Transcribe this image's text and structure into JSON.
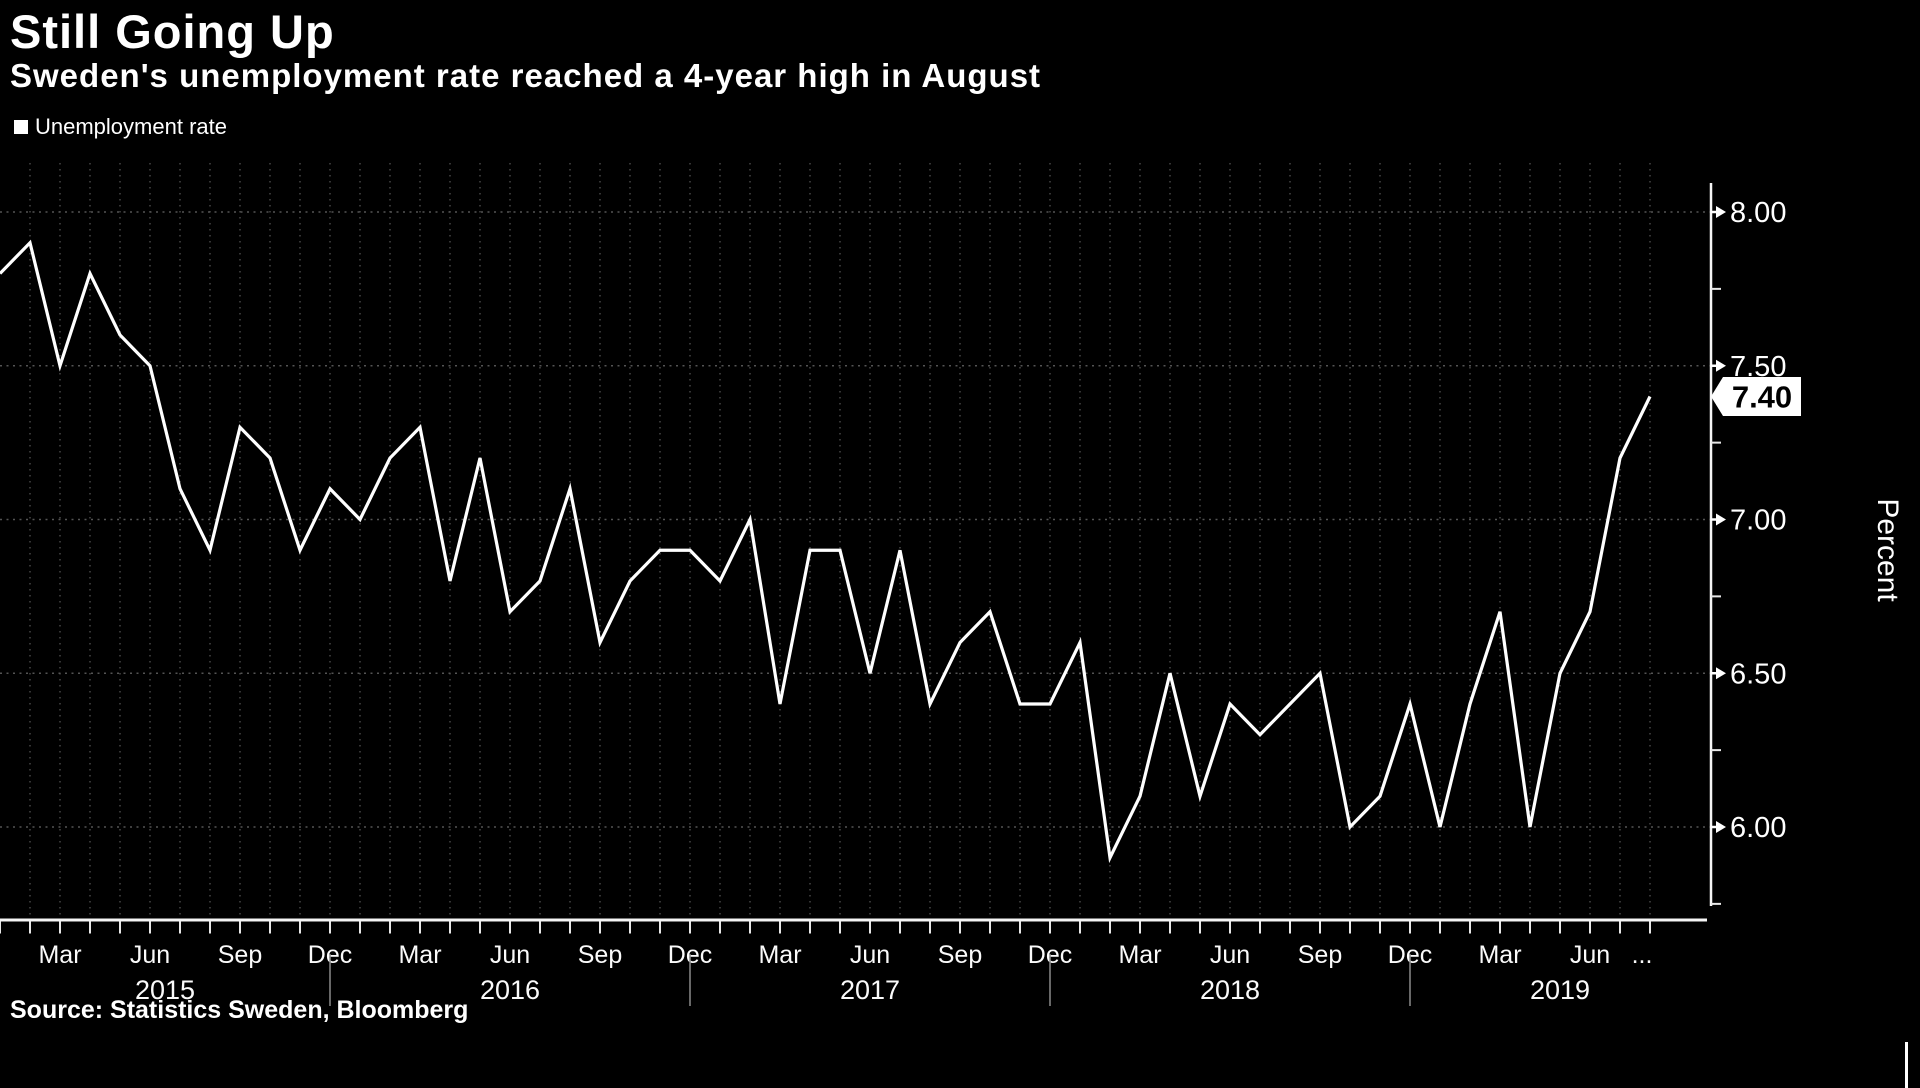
{
  "header": {
    "title": "Still Going Up",
    "subtitle": "Sweden's unemployment rate reached a 4-year high in August"
  },
  "legend": {
    "label": "Unemployment rate",
    "swatch_color": "#ffffff"
  },
  "footer": {
    "source": "Source: Statistics Sweden, Bloomberg"
  },
  "chart_data": {
    "type": "line",
    "title": "Still Going Up",
    "subtitle": "Sweden's unemployment rate reached a 4-year high in August",
    "ylabel": "Percent",
    "xlabel": "",
    "ylim": [
      5.75,
      8.1
    ],
    "grid": "dotted",
    "legend_position": "top-left",
    "background_color": "#000000",
    "line_color": "#ffffff",
    "grid_color": "#545454",
    "axis_color": "#f5f5f5",
    "y_ticks": [
      "8.00",
      "7.50",
      "7.00",
      "6.50",
      "6.00"
    ],
    "y_tick_values": [
      8.0,
      7.5,
      7.0,
      6.5,
      6.0
    ],
    "y_minor_tick_values": [
      7.75,
      7.25,
      6.75,
      6.25,
      5.75
    ],
    "x_tick_labels": [
      "Mar",
      "Jun",
      "Sep",
      "Dec",
      "Mar",
      "Jun",
      "Sep",
      "Dec",
      "Mar",
      "Jun",
      "Sep",
      "Dec",
      "Mar",
      "Jun",
      "Sep",
      "Dec",
      "Mar",
      "Jun"
    ],
    "x_axis_ellipsis": "...",
    "year_labels": [
      "2015",
      "2016",
      "2017",
      "2018",
      "2019"
    ],
    "last_point_label": "7.40",
    "series": [
      {
        "name": "Unemployment rate",
        "start_month": "Jan 2015",
        "end_month": "Aug 2019",
        "frequency": "monthly",
        "values": [
          7.8,
          7.9,
          7.5,
          7.8,
          7.6,
          7.5,
          7.1,
          6.9,
          7.3,
          7.2,
          6.9,
          7.1,
          7.0,
          7.2,
          7.3,
          6.8,
          7.2,
          6.7,
          6.8,
          7.1,
          6.6,
          6.8,
          6.9,
          6.9,
          6.8,
          7.0,
          6.4,
          6.9,
          6.9,
          6.5,
          6.9,
          6.4,
          6.6,
          6.7,
          6.4,
          6.4,
          6.6,
          5.9,
          6.1,
          6.5,
          6.1,
          6.4,
          6.3,
          6.4,
          6.5,
          6.0,
          6.1,
          6.4,
          6.0,
          6.4,
          6.7,
          6.0,
          6.5,
          6.7,
          7.2,
          7.4
        ]
      }
    ]
  }
}
